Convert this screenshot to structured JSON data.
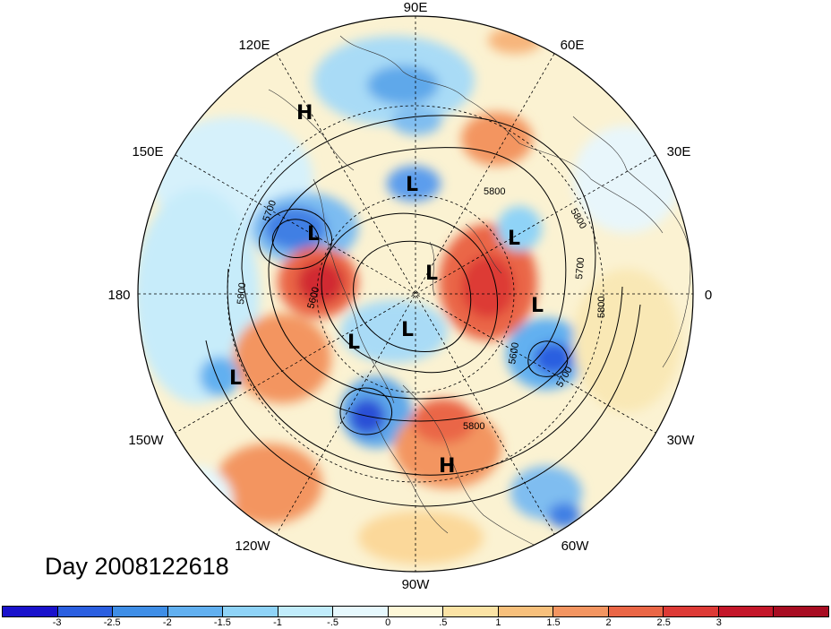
{
  "title": "Day 2008122618",
  "longitude_labels": {
    "lon_90E": "90E",
    "lon_60E": "60E",
    "lon_30E": "30E",
    "lon_0": "0",
    "lon_30W": "30W",
    "lon_60W": "60W",
    "lon_90W": "90W",
    "lon_120W": "120W",
    "lon_150W": "150W",
    "lon_180": "180",
    "lon_150E": "150E",
    "lon_120E": "120E"
  },
  "pressure_systems": [
    {
      "type": "H",
      "label": "H"
    },
    {
      "type": "L",
      "label": "L"
    },
    {
      "type": "L",
      "label": "L"
    },
    {
      "type": "L",
      "label": "L"
    },
    {
      "type": "L",
      "label": "L"
    },
    {
      "type": "L",
      "label": "L"
    },
    {
      "type": "L",
      "label": "L"
    },
    {
      "type": "L",
      "label": "L"
    },
    {
      "type": "L",
      "label": "L"
    },
    {
      "type": "H",
      "label": "H"
    }
  ],
  "contour_labels": [
    "5700",
    "5800",
    "5600",
    "5800",
    "5700",
    "5800",
    "5600",
    "5700",
    "5800",
    "5800"
  ],
  "colorbar": {
    "colors": [
      "#1a12cc",
      "#2b5fe0",
      "#3f8ee6",
      "#62b0f0",
      "#8fd3f7",
      "#c1ecfb",
      "#e6f8fd",
      "#fdf7d7",
      "#fbe3a5",
      "#f7c07c",
      "#f39561",
      "#ea6646",
      "#dd3a36",
      "#c4172a",
      "#a80d22"
    ],
    "ticks": [
      "-3",
      "-2.5",
      "-2",
      "-1.5",
      "-1",
      "-.5",
      "0",
      ".5",
      "1",
      "1.5",
      "2",
      "2.5",
      "3"
    ]
  }
}
